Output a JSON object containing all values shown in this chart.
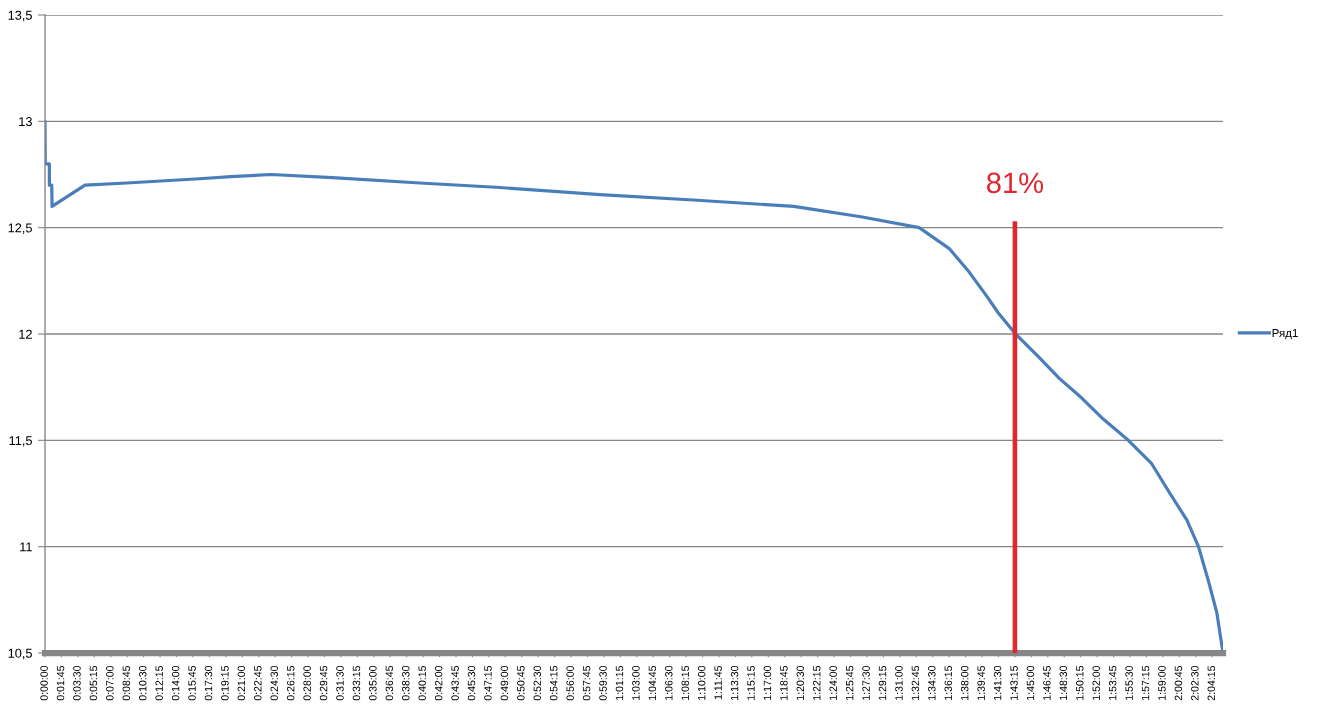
{
  "chart_data": {
    "type": "line",
    "series": [
      {
        "name": "Ряд1",
        "color": "#4a7ebb",
        "x": [
          0,
          0.0005,
          0.0077,
          0.0078,
          0.012,
          0.0125,
          0.071,
          0.145,
          0.274,
          0.33,
          0.401,
          0.51,
          0.665,
          0.8,
          0.985,
          1.15,
          1.3285,
          1.45,
          1.551,
          1.605,
          1.64,
          1.673,
          1.691,
          1.722,
          1.762,
          1.8,
          1.839,
          1.8775,
          1.922,
          1.9635,
          1.996,
          2.026,
          2.0465,
          2.064,
          2.079,
          2.09
        ],
        "values": [
          13.0,
          12.8,
          12.8,
          12.7,
          12.7,
          12.6,
          12.7,
          12.71,
          12.73,
          12.74,
          12.75,
          12.735,
          12.71,
          12.69,
          12.655,
          12.63,
          12.6,
          12.55,
          12.5,
          12.4,
          12.29,
          12.17,
          12.1,
          12.0,
          11.895,
          11.79,
          11.7,
          11.6,
          11.5,
          11.39,
          11.25,
          11.125,
          11.0,
          10.84,
          10.69,
          10.5
        ]
      }
    ],
    "xlim": [
      0,
      2.09
    ],
    "xticks": [
      {
        "value": 0,
        "label": "0:00:00"
      },
      {
        "value": 0.02917,
        "label": "0:01:45"
      },
      {
        "value": 0.05833,
        "label": "0:03:30"
      },
      {
        "value": 0.0875,
        "label": "0:05:15"
      },
      {
        "value": 0.11667,
        "label": "0:07:00"
      },
      {
        "value": 0.14583,
        "label": "0:08:45"
      },
      {
        "value": 0.175,
        "label": "0:10:30"
      },
      {
        "value": 0.20417,
        "label": "0:12:15"
      },
      {
        "value": 0.23333,
        "label": "0:14:00"
      },
      {
        "value": 0.2625,
        "label": "0:15:45"
      },
      {
        "value": 0.29167,
        "label": "0:17:30"
      },
      {
        "value": 0.32083,
        "label": "0:19:15"
      },
      {
        "value": 0.35,
        "label": "0:21:00"
      },
      {
        "value": 0.37917,
        "label": "0:22:45"
      },
      {
        "value": 0.40833,
        "label": "0:24:30"
      },
      {
        "value": 0.4375,
        "label": "0:26:15"
      },
      {
        "value": 0.46667,
        "label": "0:28:00"
      },
      {
        "value": 0.49583,
        "label": "0:29:45"
      },
      {
        "value": 0.525,
        "label": "0:31:30"
      },
      {
        "value": 0.55417,
        "label": "0:33:15"
      },
      {
        "value": 0.58333,
        "label": "0:35:00"
      },
      {
        "value": 0.6125,
        "label": "0:36:45"
      },
      {
        "value": 0.64167,
        "label": "0:38:30"
      },
      {
        "value": 0.67083,
        "label": "0:40:15"
      },
      {
        "value": 0.7,
        "label": "0:42:00"
      },
      {
        "value": 0.72917,
        "label": "0:43:45"
      },
      {
        "value": 0.75833,
        "label": "0:45:30"
      },
      {
        "value": 0.7875,
        "label": "0:47:15"
      },
      {
        "value": 0.81667,
        "label": "0:49:00"
      },
      {
        "value": 0.84583,
        "label": "0:50:45"
      },
      {
        "value": 0.875,
        "label": "0:52:30"
      },
      {
        "value": 0.90417,
        "label": "0:54:15"
      },
      {
        "value": 0.93333,
        "label": "0:56:00"
      },
      {
        "value": 0.9625,
        "label": "0:57:45"
      },
      {
        "value": 0.99167,
        "label": "0:59:30"
      },
      {
        "value": 1.02083,
        "label": "1:01:15"
      },
      {
        "value": 1.05,
        "label": "1:03:00"
      },
      {
        "value": 1.07917,
        "label": "1:04:45"
      },
      {
        "value": 1.10833,
        "label": "1:06:30"
      },
      {
        "value": 1.1375,
        "label": "1:08:15"
      },
      {
        "value": 1.16667,
        "label": "1:10:00"
      },
      {
        "value": 1.19583,
        "label": "1:11:45"
      },
      {
        "value": 1.225,
        "label": "1:13:30"
      },
      {
        "value": 1.25417,
        "label": "1:15:15"
      },
      {
        "value": 1.28333,
        "label": "1:17:00"
      },
      {
        "value": 1.3125,
        "label": "1:18:45"
      },
      {
        "value": 1.34167,
        "label": "1:20:30"
      },
      {
        "value": 1.37083,
        "label": "1:22:15"
      },
      {
        "value": 1.4,
        "label": "1:24:00"
      },
      {
        "value": 1.42917,
        "label": "1:25:45"
      },
      {
        "value": 1.45833,
        "label": "1:27:30"
      },
      {
        "value": 1.4875,
        "label": "1:29:15"
      },
      {
        "value": 1.51667,
        "label": "1:31:00"
      },
      {
        "value": 1.54583,
        "label": "1:32:45"
      },
      {
        "value": 1.575,
        "label": "1:34:30"
      },
      {
        "value": 1.60417,
        "label": "1:36:15"
      },
      {
        "value": 1.63333,
        "label": "1:38:00"
      },
      {
        "value": 1.6625,
        "label": "1:39:45"
      },
      {
        "value": 1.69167,
        "label": "1:41:30"
      },
      {
        "value": 1.72083,
        "label": "1:43:15"
      },
      {
        "value": 1.75,
        "label": "1:45:00"
      },
      {
        "value": 1.77917,
        "label": "1:46:45"
      },
      {
        "value": 1.80833,
        "label": "1:48:30"
      },
      {
        "value": 1.8375,
        "label": "1:50:15"
      },
      {
        "value": 1.86667,
        "label": "1:52:00"
      },
      {
        "value": 1.89583,
        "label": "1:53:45"
      },
      {
        "value": 1.925,
        "label": "1:55:30"
      },
      {
        "value": 1.95417,
        "label": "1:57:15"
      },
      {
        "value": 1.98333,
        "label": "1:59:00"
      },
      {
        "value": 2.0125,
        "label": "2:00:45"
      },
      {
        "value": 2.04167,
        "label": "2:02:30"
      },
      {
        "value": 2.07083,
        "label": "2:04:15"
      }
    ],
    "ylim": [
      10.5,
      13.5
    ],
    "yticks": [
      {
        "value": 10.5,
        "label": "10,5"
      },
      11,
      {
        "value": 11.5,
        "label": "11,5"
      },
      12,
      {
        "value": 12.5,
        "label": "12,5"
      },
      13,
      {
        "value": 13.5,
        "label": "13,5"
      }
    ],
    "ref_lines": [
      {
        "axis": "x",
        "value": 1.72083,
        "color": "#e0262e"
      }
    ],
    "annotations": [
      "81%"
    ],
    "grid": "y",
    "legend": "right"
  }
}
